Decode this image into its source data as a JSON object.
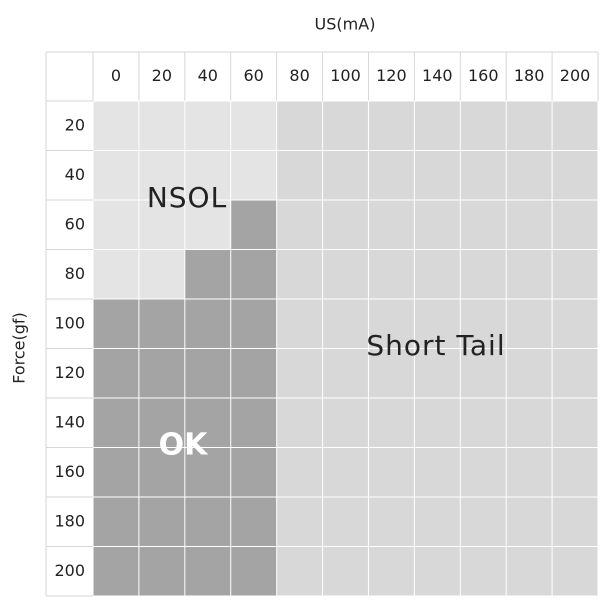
{
  "x_label": "US(mA)",
  "y_label": "Force(gf)",
  "table": {
    "columns": [
      "0",
      "20",
      "40",
      "60",
      "80",
      "100",
      "120",
      "140",
      "160",
      "180",
      "200"
    ],
    "rows": [
      "20",
      "40",
      "60",
      "80",
      "100",
      "120",
      "140",
      "160",
      "180",
      "200"
    ],
    "cell_colors": [
      [
        "#e4e4e4",
        "#e4e4e4",
        "#e4e4e4",
        "#e4e4e4",
        "#d8d8d8",
        "#d8d8d8",
        "#d8d8d8",
        "#d8d8d8",
        "#d8d8d8",
        "#d8d8d8",
        "#d8d8d8"
      ],
      [
        "#e4e4e4",
        "#e4e4e4",
        "#e4e4e4",
        "#e4e4e4",
        "#d8d8d8",
        "#d8d8d8",
        "#d8d8d8",
        "#d8d8d8",
        "#d8d8d8",
        "#d8d8d8",
        "#d8d8d8"
      ],
      [
        "#e4e4e4",
        "#e4e4e4",
        "#e4e4e4",
        "#a4a4a4",
        "#d8d8d8",
        "#d8d8d8",
        "#d8d8d8",
        "#d8d8d8",
        "#d8d8d8",
        "#d8d8d8",
        "#d8d8d8"
      ],
      [
        "#e4e4e4",
        "#e4e4e4",
        "#a4a4a4",
        "#a4a4a4",
        "#d8d8d8",
        "#d8d8d8",
        "#d8d8d8",
        "#d8d8d8",
        "#d8d8d8",
        "#d8d8d8",
        "#d8d8d8"
      ],
      [
        "#a4a4a4",
        "#a4a4a4",
        "#a4a4a4",
        "#a4a4a4",
        "#d8d8d8",
        "#d8d8d8",
        "#d8d8d8",
        "#d8d8d8",
        "#d8d8d8",
        "#d8d8d8",
        "#d8d8d8"
      ],
      [
        "#a4a4a4",
        "#a4a4a4",
        "#a4a4a4",
        "#a4a4a4",
        "#d8d8d8",
        "#d8d8d8",
        "#d8d8d8",
        "#d8d8d8",
        "#d8d8d8",
        "#d8d8d8",
        "#d8d8d8"
      ],
      [
        "#a4a4a4",
        "#a4a4a4",
        "#a4a4a4",
        "#a4a4a4",
        "#d8d8d8",
        "#d8d8d8",
        "#d8d8d8",
        "#d8d8d8",
        "#d8d8d8",
        "#d8d8d8",
        "#d8d8d8"
      ],
      [
        "#a4a4a4",
        "#a4a4a4",
        "#a4a4a4",
        "#a4a4a4",
        "#d8d8d8",
        "#d8d8d8",
        "#d8d8d8",
        "#d8d8d8",
        "#d8d8d8",
        "#d8d8d8",
        "#d8d8d8"
      ],
      [
        "#a4a4a4",
        "#a4a4a4",
        "#a4a4a4",
        "#a4a4a4",
        "#d8d8d8",
        "#d8d8d8",
        "#d8d8d8",
        "#d8d8d8",
        "#d8d8d8",
        "#d8d8d8",
        "#d8d8d8"
      ],
      [
        "#a4a4a4",
        "#a4a4a4",
        "#a4a4a4",
        "#a4a4a4",
        "#d8d8d8",
        "#d8d8d8",
        "#d8d8d8",
        "#d8d8d8",
        "#d8d8d8",
        "#d8d8d8",
        "#d8d8d8"
      ]
    ]
  },
  "regions": [
    {
      "label": "NSOL"
    },
    {
      "label": "Short Tail"
    },
    {
      "label": "OK"
    }
  ]
}
